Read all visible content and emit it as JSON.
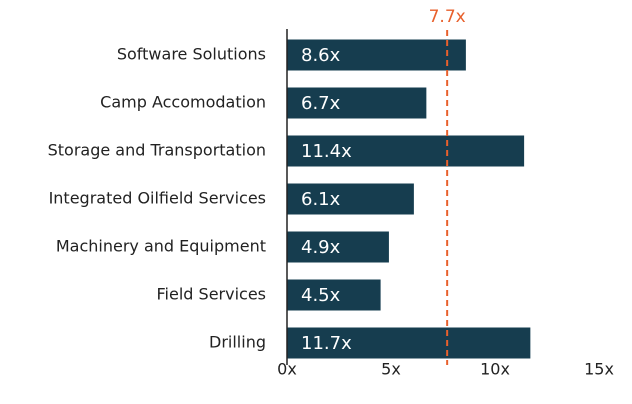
{
  "chart_data": {
    "type": "barh",
    "categories": [
      "Software Solutions",
      "Camp Accomodation",
      "Storage and Transportation",
      "Integrated Oilfield Services",
      "Machinery and Equipment",
      "Field Services",
      "Drilling"
    ],
    "values": [
      8.6,
      6.7,
      11.4,
      6.1,
      4.9,
      4.5,
      11.7
    ],
    "value_labels": [
      "8.6x",
      "6.7x",
      "11.4x",
      "6.1x",
      "4.9x",
      "4.5x",
      "11.7x"
    ],
    "color": "#163d4f",
    "xlim": [
      0,
      15
    ],
    "xticks": [
      {
        "value": 0,
        "label": "0x"
      },
      {
        "value": 5,
        "label": "5x"
      },
      {
        "value": 10,
        "label": "10x"
      },
      {
        "value": 15,
        "label": "15x"
      }
    ],
    "reference_line": {
      "value": 7.7,
      "label": "7.7x",
      "color": "#e8602c"
    }
  }
}
